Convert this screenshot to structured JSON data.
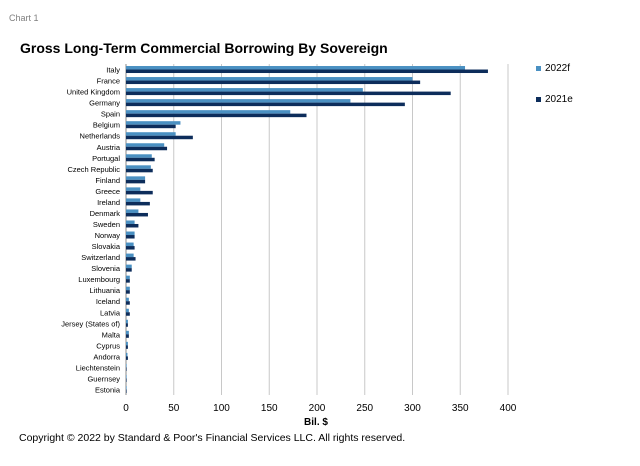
{
  "header": {
    "chart_number": "Chart 1"
  },
  "footer": {
    "copyright": "Copyright © 2022 by Standard & Poor's Financial Services LLC. All rights reserved."
  },
  "colors": {
    "series_2022f": "#4a90c2",
    "series_2021e": "#0d2d5b",
    "gridline": "#c8c8c8"
  },
  "chart_data": {
    "type": "bar",
    "orientation": "horizontal",
    "title": "Gross Long-Term Commercial Borrowing By Sovereign",
    "xlabel": "Bil. $",
    "ylabel": "",
    "xlim": [
      0,
      400
    ],
    "xticks": [
      0,
      50,
      100,
      150,
      200,
      250,
      300,
      350,
      400
    ],
    "grid": true,
    "legend_position": "right",
    "categories": [
      "Italy",
      "France",
      "United Kingdom",
      "Germany",
      "Spain",
      "Belgium",
      "Netherlands",
      "Austria",
      "Portugal",
      "Czech Republic",
      "Finland",
      "Greece",
      "Ireland",
      "Denmark",
      "Sweden",
      "Norway",
      "Slovakia",
      "Switzerland",
      "Slovenia",
      "Luxembourg",
      "Lithuania",
      "Iceland",
      "Latvia",
      "Jersey (States of)",
      "Malta",
      "Cyprus",
      "Andorra",
      "Liechtenstein",
      "Guernsey",
      "Estonia"
    ],
    "series": [
      {
        "name": "2022f",
        "values": [
          355,
          300,
          248,
          235,
          172,
          57,
          52,
          40,
          27,
          26,
          20,
          15,
          15,
          13,
          9,
          9,
          8,
          8,
          6,
          4,
          4,
          3,
          3,
          2,
          3,
          2,
          1.5,
          0.3,
          0.3,
          0.2
        ]
      },
      {
        "name": "2021e",
        "values": [
          379,
          308,
          340,
          292,
          189,
          52,
          70,
          43,
          30,
          28,
          20,
          28,
          25,
          23,
          13,
          9,
          9,
          10,
          6,
          4,
          4,
          4,
          4,
          2,
          3,
          2,
          2,
          0.5,
          0.5,
          0.5
        ]
      }
    ]
  }
}
